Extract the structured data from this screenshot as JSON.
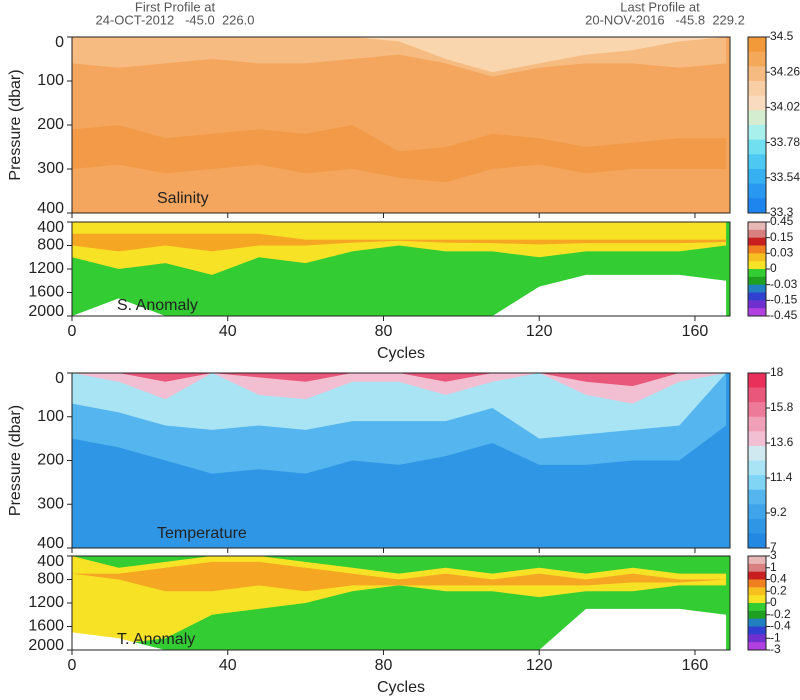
{
  "header": {
    "first_title": "First Profile at",
    "first_info": "24-OCT-2012   -45.0  226.0",
    "last_title": "Last Profile at",
    "last_info": "20-NOV-2016   -45.8  229.2"
  },
  "chart_data": [
    {
      "type": "contour",
      "label": "Salinity",
      "ylabel": "Pressure (dbar)",
      "xlim": [
        0,
        169
      ],
      "xticks": [
        0,
        40,
        80,
        120,
        160
      ],
      "ylim": [
        0,
        400
      ],
      "yticks": [
        0,
        100,
        200,
        300,
        400
      ],
      "background": "#f4a65e",
      "x": [
        0,
        12,
        24,
        36,
        48,
        60,
        72,
        84,
        96,
        108,
        120,
        132,
        144,
        156,
        168
      ],
      "layers": [
        {
          "color": "#f6bb80",
          "top": [
            0,
            0,
            0,
            0,
            0,
            0,
            0,
            0,
            0,
            0,
            0,
            0,
            0,
            0,
            0
          ],
          "bottom": [
            60,
            70,
            60,
            50,
            60,
            60,
            50,
            40,
            60,
            90,
            70,
            60,
            60,
            70,
            60
          ]
        },
        {
          "color": "#f9d6ae",
          "top": [
            0,
            0,
            0,
            0,
            0,
            0,
            0,
            0,
            0,
            0,
            0,
            0,
            0,
            0,
            0
          ],
          "bottom": [
            0,
            0,
            0,
            0,
            0,
            0,
            0,
            10,
            50,
            80,
            60,
            40,
            30,
            10,
            0
          ]
        },
        {
          "color": "#f29a48",
          "top": [
            210,
            200,
            230,
            220,
            210,
            220,
            200,
            260,
            250,
            220,
            230,
            250,
            240,
            230,
            230
          ],
          "bottom": [
            300,
            290,
            310,
            300,
            290,
            310,
            300,
            320,
            330,
            300,
            290,
            310,
            300,
            300,
            300
          ]
        }
      ],
      "colorbar": {
        "ticks": [
          34.5,
          34.26,
          34.02,
          33.78,
          33.54,
          33.3
        ],
        "colors": [
          "#f29a3a",
          "#f4a85a",
          "#f6bb80",
          "#f8cfa4",
          "#f9dcc0",
          "#d4ecd0",
          "#a8f0ec",
          "#70e0f0",
          "#4cc8f2",
          "#36b0f0",
          "#2898f0",
          "#1e84ee"
        ]
      }
    },
    {
      "type": "contour",
      "label": "S. Anomaly",
      "xlabel": "Cycles",
      "xlim": [
        0,
        169
      ],
      "xticks": [
        0,
        40,
        80,
        120,
        160
      ],
      "ylim": [
        400,
        2000
      ],
      "yticks": [
        400,
        800,
        1200,
        1600,
        2000
      ],
      "background": "#33cc33",
      "x": [
        0,
        12,
        24,
        36,
        48,
        60,
        72,
        84,
        96,
        108,
        120,
        132,
        144,
        156,
        168
      ],
      "layers": [
        {
          "color": "#f7e225",
          "top": [
            400,
            400,
            400,
            400,
            400,
            400,
            400,
            400,
            400,
            400,
            400,
            400,
            400,
            400,
            400
          ],
          "bottom": [
            1000,
            1200,
            1100,
            1300,
            1000,
            1100,
            900,
            800,
            900,
            900,
            1000,
            900,
            900,
            900,
            800
          ]
        },
        {
          "color": "#f5a623",
          "top": [
            600,
            600,
            600,
            600,
            600,
            700,
            700,
            700,
            700,
            700,
            700,
            700,
            700,
            700,
            700
          ],
          "bottom": [
            800,
            900,
            800,
            900,
            800,
            800,
            750,
            720,
            750,
            760,
            780,
            760,
            760,
            760,
            740
          ]
        },
        {
          "color": "#ffffff",
          "top": [
            2000,
            1700,
            2000,
            2000,
            2000,
            2000,
            2000,
            2000,
            2000,
            2000,
            1500,
            1300,
            1300,
            1300,
            1400
          ],
          "bottom": [
            2000,
            2000,
            2000,
            2000,
            2000,
            2000,
            2000,
            2000,
            2000,
            2000,
            2000,
            2000,
            2000,
            2000,
            2000
          ]
        }
      ],
      "colorbar": {
        "ticks": [
          0.45,
          0.15,
          0.03,
          0,
          -0.03,
          -0.15,
          -0.45
        ],
        "colors": [
          "#e8b8b8",
          "#d88080",
          "#c82020",
          "#f08020",
          "#f5c020",
          "#f7e225",
          "#33cc33",
          "#20a020",
          "#2080c0",
          "#3040d0",
          "#7030d0",
          "#b040e0"
        ]
      }
    },
    {
      "type": "contour",
      "label": "Temperature",
      "ylabel": "Pressure (dbar)",
      "xlim": [
        0,
        169
      ],
      "xticks": [
        0,
        40,
        80,
        120,
        160
      ],
      "ylim": [
        0,
        400
      ],
      "yticks": [
        0,
        100,
        200,
        300,
        400
      ],
      "background": "#2f96e6",
      "x": [
        0,
        12,
        24,
        36,
        48,
        60,
        72,
        84,
        96,
        108,
        120,
        132,
        144,
        156,
        168
      ],
      "layers": [
        {
          "color": "#55b5ee",
          "top": [
            0,
            0,
            0,
            0,
            0,
            0,
            0,
            0,
            0,
            0,
            0,
            0,
            0,
            0,
            0
          ],
          "bottom": [
            150,
            170,
            200,
            230,
            220,
            230,
            200,
            210,
            190,
            160,
            210,
            210,
            200,
            200,
            120
          ]
        },
        {
          "color": "#a9e4f4",
          "top": [
            0,
            0,
            0,
            0,
            0,
            0,
            0,
            0,
            0,
            0,
            0,
            0,
            0,
            0,
            0
          ],
          "bottom": [
            70,
            90,
            120,
            130,
            120,
            130,
            110,
            110,
            110,
            80,
            150,
            140,
            130,
            120,
            0
          ]
        },
        {
          "color": "#f2bfd2",
          "top": [
            0,
            0,
            0,
            0,
            0,
            0,
            0,
            0,
            0,
            0,
            0,
            0,
            0,
            0,
            0
          ],
          "bottom": [
            0,
            20,
            60,
            0,
            50,
            60,
            20,
            20,
            50,
            20,
            0,
            50,
            70,
            20,
            0
          ]
        },
        {
          "color": "#e9577a",
          "top": [
            0,
            0,
            0,
            0,
            0,
            0,
            0,
            0,
            0,
            0,
            0,
            0,
            0,
            0,
            0
          ],
          "bottom": [
            0,
            0,
            20,
            0,
            10,
            20,
            0,
            0,
            20,
            0,
            0,
            20,
            30,
            0,
            0
          ]
        }
      ],
      "colorbar": {
        "ticks": [
          18,
          15.8,
          13.6,
          11.4,
          9.2,
          7
        ],
        "colors": [
          "#e8305a",
          "#e9577a",
          "#ec7a98",
          "#f0a0b8",
          "#f2bfd2",
          "#d0e8f0",
          "#a9e4f4",
          "#80d4f4",
          "#55b5ee",
          "#40a4ea",
          "#2f96e6",
          "#2288e2"
        ]
      }
    },
    {
      "type": "contour",
      "label": "T. Anomaly",
      "xlabel": "Cycles",
      "xlim": [
        0,
        169
      ],
      "xticks": [
        0,
        40,
        80,
        120,
        160
      ],
      "ylim": [
        400,
        2000
      ],
      "yticks": [
        400,
        800,
        1200,
        1600,
        2000
      ],
      "background": "#33cc33",
      "x": [
        0,
        12,
        24,
        36,
        48,
        60,
        72,
        84,
        96,
        108,
        120,
        132,
        144,
        156,
        168
      ],
      "layers": [
        {
          "color": "#f7e225",
          "top": [
            400,
            600,
            500,
            400,
            400,
            500,
            600,
            700,
            600,
            700,
            600,
            700,
            600,
            700,
            700
          ],
          "bottom": [
            2000,
            1900,
            1800,
            1400,
            1300,
            1200,
            1000,
            900,
            1000,
            1000,
            1100,
            1000,
            1000,
            900,
            900
          ]
        },
        {
          "color": "#f5a623",
          "top": [
            700,
            700,
            600,
            500,
            500,
            600,
            700,
            800,
            700,
            800,
            700,
            800,
            700,
            800,
            800
          ],
          "bottom": [
            700,
            800,
            1000,
            1000,
            900,
            1000,
            900,
            900,
            900,
            900,
            900,
            900,
            850,
            850,
            800
          ]
        },
        {
          "color": "#ffffff",
          "top": [
            1700,
            1800,
            2000,
            2000,
            2000,
            2000,
            2000,
            2000,
            2000,
            2000,
            2000,
            1300,
            1300,
            1300,
            1400
          ],
          "bottom": [
            2000,
            2000,
            2000,
            2000,
            2000,
            2000,
            2000,
            2000,
            2000,
            2000,
            2000,
            2000,
            2000,
            2000,
            2000
          ]
        }
      ],
      "colorbar": {
        "ticks": [
          3,
          1,
          0.4,
          0.2,
          0,
          -0.2,
          -0.4,
          -1,
          -3
        ],
        "colors": [
          "#e8b8b8",
          "#d88080",
          "#c82020",
          "#f08020",
          "#f5c020",
          "#f7e225",
          "#33cc33",
          "#20a020",
          "#2080c0",
          "#3040d0",
          "#7030d0",
          "#b040e0"
        ]
      }
    }
  ]
}
